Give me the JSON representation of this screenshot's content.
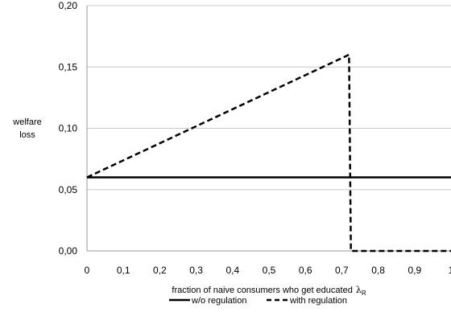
{
  "chart_data": {
    "type": "line",
    "xlabel": "fraction of naive consumers who get educated",
    "xlabel_symbol": "λ",
    "xlabel_subscript": "R",
    "ylabel_line1": "welfare",
    "ylabel_line2": "loss",
    "xlim": [
      0,
      1
    ],
    "ylim": [
      0,
      0.2
    ],
    "x_ticks": [
      0,
      0.1,
      0.2,
      0.3,
      0.4,
      0.5,
      0.6,
      0.7,
      0.8,
      0.9,
      1
    ],
    "x_tick_labels": [
      "0",
      "0,1",
      "0,2",
      "0,3",
      "0,4",
      "0,5",
      "0,6",
      "0,7",
      "0,8",
      "0,9",
      "1"
    ],
    "y_ticks": [
      0,
      0.05,
      0.1,
      0.15,
      0.2
    ],
    "y_tick_labels": [
      "0,00",
      "0,05",
      "0,10",
      "0,15",
      "0,20"
    ],
    "grid": "horizontal",
    "legend_position": "bottom",
    "series": [
      {
        "name": "w/o regulation",
        "style": "solid",
        "color": "#000000",
        "points": [
          [
            0,
            0.06
          ],
          [
            1,
            0.06
          ]
        ]
      },
      {
        "name": "with regulation",
        "style": "dashed",
        "color": "#000000",
        "points": [
          [
            0,
            0.06
          ],
          [
            0.72,
            0.16
          ],
          [
            0.725,
            0
          ],
          [
            1,
            0
          ]
        ]
      }
    ]
  }
}
